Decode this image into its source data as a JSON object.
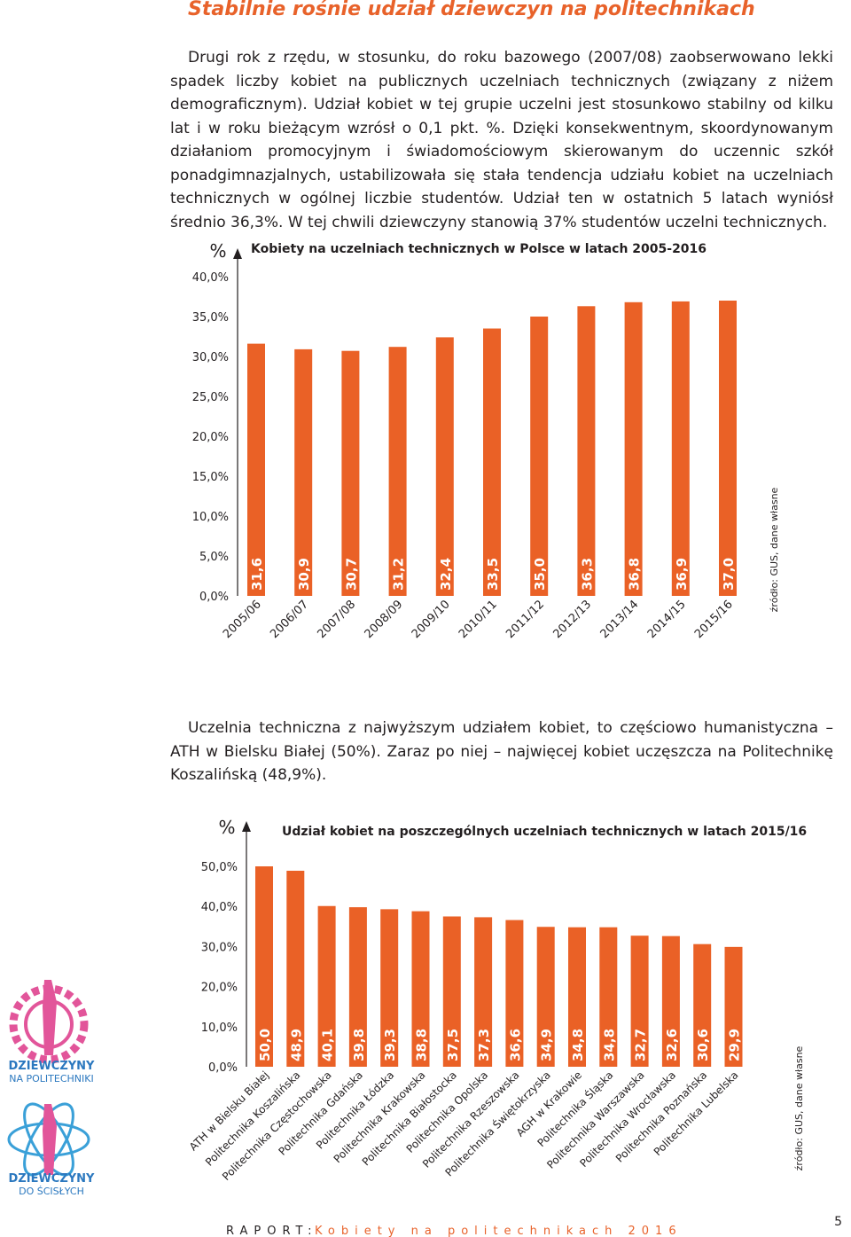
{
  "title": "Stabilnie rośnie udział dziewczyn na politechnikach",
  "paragraphs": [
    "Drugi rok z rzędu, w stosunku, do roku bazowego (2007/08) zaobserwowano lekki spadek liczby kobiet na publicznych uczelniach technicznych (związany z niżem demograficznym). Udział kobiet w tej grupie uczelni jest stosunkowo stabilny od kilku lat i w roku bieżącym wzrósł o 0,1 pkt. %. Dzięki konsekwentnym, skoordynowanym działaniom promocyjnym i świadomościowym skierowanym do uczennic szkół ponadgimnazjalnych, ustabilizowała się stała tendencja udziału kobiet na uczelniach technicznych w ogólnej liczbie studentów. Udział ten w ostatnich 5 latach wyniósł średnio 36,3%. W tej chwili dziewczyny stanowią 37% studentów uczelni technicznych.",
    "Uczelnia techniczna z najwyższym udziałem kobiet, to częściowo humanistyczna – ATH w Bielsku Białej (50%). Zaraz po niej – najwięcej kobiet uczęszcza na Politechnikę Koszalińską (48,9%)."
  ],
  "chart_data": [
    {
      "type": "bar",
      "title": "Kobiety na uczelniach technicznych w Polsce w latach 2005-2016",
      "y_label": "%",
      "source": "źródło: GUS, dane własne",
      "color": "#ea6126",
      "categories": [
        "2005/06",
        "2006/07",
        "2007/08",
        "2008/09",
        "2009/10",
        "2010/11",
        "2011/12",
        "2012/13",
        "2013/14",
        "2014/15",
        "2015/16"
      ],
      "values": [
        31.6,
        30.9,
        30.7,
        31.2,
        32.4,
        33.5,
        35.0,
        36.3,
        36.8,
        36.9,
        37.0
      ],
      "value_labels": [
        "31,6",
        "30,9",
        "30,7",
        "31,2",
        "32,4",
        "33,5",
        "35,0",
        "36,3",
        "36,8",
        "36,9",
        "37,0"
      ],
      "ylim": [
        0,
        40
      ],
      "yticks": [
        {
          "value": 0,
          "label": "0,0%"
        },
        {
          "value": 5,
          "label": "5,0%"
        },
        {
          "value": 10,
          "label": "10,0%"
        },
        {
          "value": 15,
          "label": "15,0%"
        },
        {
          "value": 20,
          "label": "20,0%"
        },
        {
          "value": 25,
          "label": "25,0%"
        },
        {
          "value": 30,
          "label": "30,0%"
        },
        {
          "value": 35,
          "label": "35,0%"
        },
        {
          "value": 40,
          "label": "40,0%"
        }
      ]
    },
    {
      "type": "bar",
      "title": "Udział kobiet na poszczególnych uczelniach technicznych w latach 2015/16",
      "y_label": "%",
      "source": "źródło: GUS, dane własne",
      "color": "#ea6126",
      "categories": [
        "ATH w Bielsku Białej",
        "Politechnika Koszalińska",
        "Politechnika Częstochowska",
        "Politechnika Gdańska",
        "Politechnika Łódzka",
        "Politechnika Krakowska",
        "Politechnika Białostocka",
        "Politechnika Opolska",
        "Politechnika Rzeszowska",
        "Politechnika Świętokrzyska",
        "AGH w Krakowie",
        "Politechnika Śląska",
        "Politechnika Warszawska",
        "Politechnika Wrocławska",
        "Politechnika Poznańska",
        "Politechnika Lubelska"
      ],
      "values": [
        50.0,
        48.9,
        40.1,
        39.8,
        39.3,
        38.8,
        37.5,
        37.3,
        36.6,
        34.9,
        34.8,
        34.8,
        32.7,
        32.6,
        30.6,
        29.9
      ],
      "value_labels": [
        "50,0",
        "48,9",
        "40,1",
        "39,8",
        "39,3",
        "38,8",
        "37,5",
        "37,3",
        "36,6",
        "34,9",
        "34,8",
        "34,8",
        "32,7",
        "32,6",
        "30,6",
        "29,9"
      ],
      "ylim": [
        0,
        50
      ],
      "yticks": [
        {
          "value": 0,
          "label": "0,0%"
        },
        {
          "value": 10,
          "label": "10,0%"
        },
        {
          "value": 20,
          "label": "20,0%"
        },
        {
          "value": 30,
          "label": "30,0%"
        },
        {
          "value": 40,
          "label": "40,0%"
        },
        {
          "value": 50,
          "label": "50,0%"
        }
      ]
    }
  ],
  "logos": [
    {
      "line1": "DZIEWCZYNY",
      "line2": "NA POLITECHNIKI"
    },
    {
      "line1": "DZIEWCZYNY",
      "line2": "DO ŚCISŁYCH"
    }
  ],
  "footer": {
    "label": "RAPORT:",
    "text": "Kobiety na politechnikach 2016"
  },
  "page_number": "5"
}
